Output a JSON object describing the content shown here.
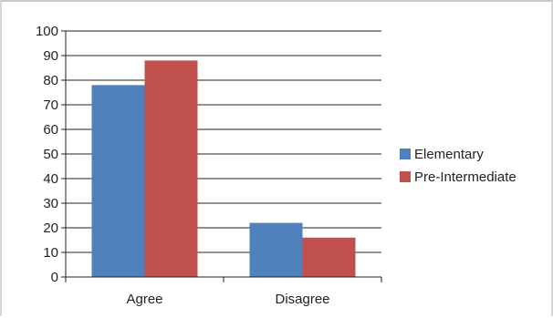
{
  "chart_data": {
    "type": "bar",
    "categories": [
      "Agree",
      "Disagree"
    ],
    "series": [
      {
        "name": "Elementary",
        "values": [
          78,
          22
        ],
        "color": "#4f81bd"
      },
      {
        "name": "Pre-Intermediate",
        "values": [
          88,
          16
        ],
        "color": "#c0504d"
      }
    ],
    "ylim": [
      0,
      100
    ],
    "yticks": [
      0,
      10,
      20,
      30,
      40,
      50,
      60,
      70,
      80,
      90,
      100
    ],
    "grid": true,
    "legend_position": "right"
  }
}
